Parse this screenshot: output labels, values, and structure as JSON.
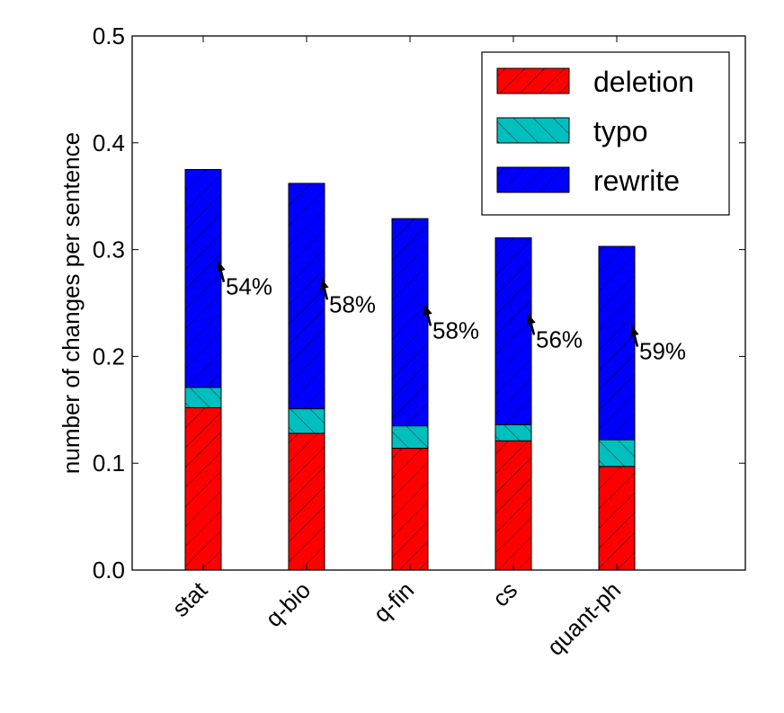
{
  "chart_data": {
    "type": "bar",
    "stacked": true,
    "categories": [
      "stat",
      "q-bio",
      "q-fin",
      "cs",
      "quant-ph"
    ],
    "series": [
      {
        "name": "deletion",
        "color": "#ff0000",
        "hatch": "/",
        "values": [
          0.152,
          0.128,
          0.114,
          0.121,
          0.097
        ]
      },
      {
        "name": "typo",
        "color": "#00bfbf",
        "hatch": "\\",
        "values": [
          0.019,
          0.023,
          0.021,
          0.015,
          0.025
        ]
      },
      {
        "name": "rewrite",
        "color": "#0000ff",
        "hatch": "/",
        "values": [
          0.204,
          0.211,
          0.194,
          0.175,
          0.181
        ]
      }
    ],
    "annotations": [
      "54%",
      "58%",
      "58%",
      "56%",
      "59%"
    ],
    "ylabel": "number of changes per sentence",
    "xlabel": "",
    "ylim": [
      0,
      0.5
    ],
    "yticks": [
      "0.0",
      "0.1",
      "0.2",
      "0.3",
      "0.4",
      "0.5"
    ],
    "legend_position": "top-right",
    "grid": false
  }
}
